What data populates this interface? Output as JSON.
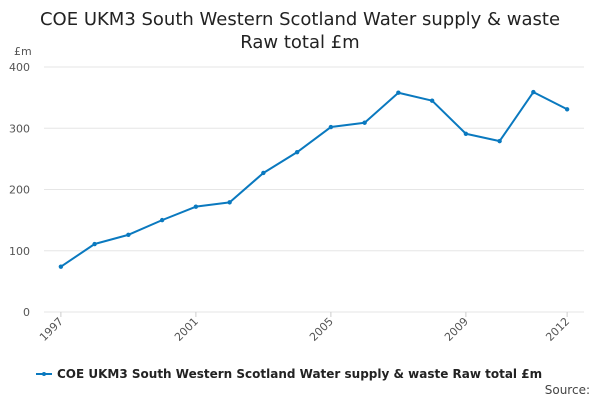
{
  "chart_data": {
    "type": "line",
    "title_lines": [
      "COE UKM3 South Western Scotland Water supply & waste",
      "Raw total £m"
    ],
    "ylabel": "£m",
    "xlabel": "",
    "x": [
      1997,
      1998,
      1999,
      2000,
      2001,
      2002,
      2003,
      2004,
      2005,
      2006,
      2007,
      2008,
      2009,
      2010,
      2011,
      2012
    ],
    "x_tick_labels": [
      "1997",
      "2001",
      "2005",
      "2009",
      "2012"
    ],
    "x_tick_values": [
      1997,
      2001,
      2005,
      2009,
      2012
    ],
    "ylim": [
      0,
      400
    ],
    "y_ticks": [
      0,
      100,
      200,
      300,
      400
    ],
    "grid": true,
    "legend_position": "bottom-left",
    "series": [
      {
        "name": "COE UKM3 South Western Scotland Water supply & waste Raw total £m",
        "color": "#0a79bf",
        "values": [
          74,
          111,
          126,
          150,
          172,
          179,
          227,
          261,
          302,
          309,
          358,
          345,
          291,
          279,
          359,
          331
        ]
      }
    ]
  },
  "source_label": "Source:"
}
